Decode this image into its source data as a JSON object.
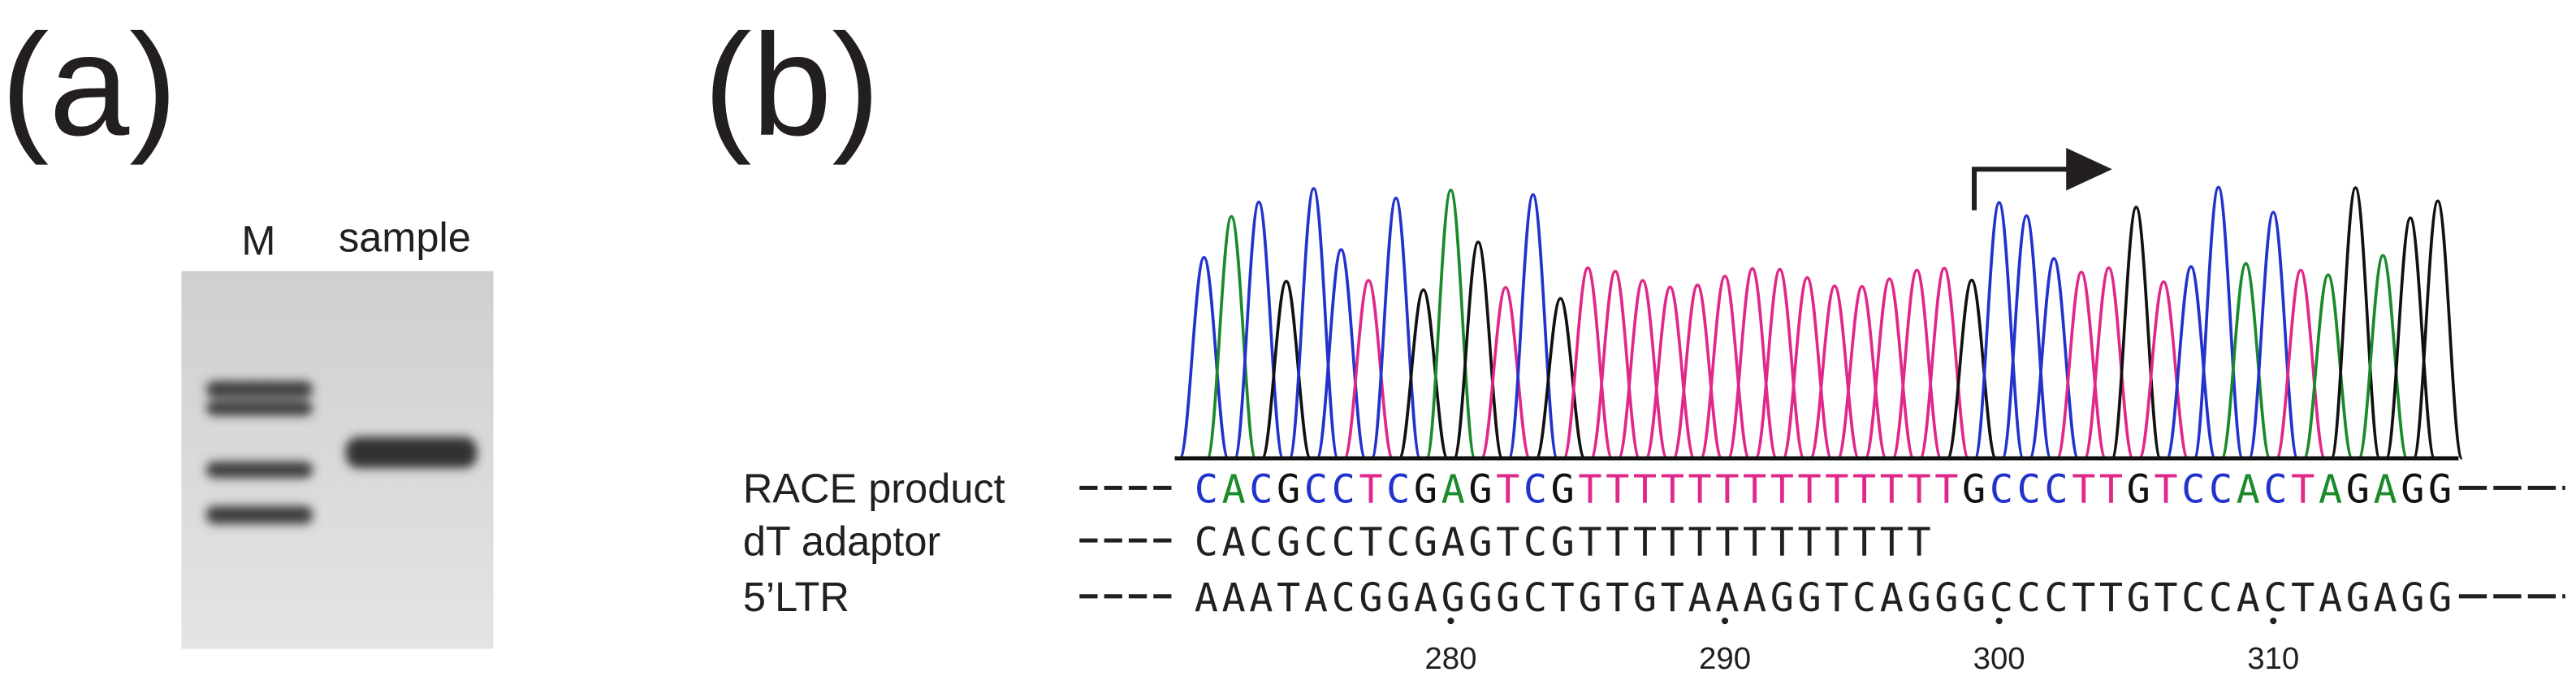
{
  "panel_a": {
    "label": "(a)",
    "lanes": [
      "M",
      "sample"
    ]
  },
  "panel_b": {
    "label": "(b)",
    "rows": [
      {
        "name": "RACE product",
        "sequence": "CACGCCTCGAGTCGTTTTTTTTTTTTTTGCCCTTGTCCACTAGAGG"
      },
      {
        "name": "dT adaptor",
        "sequence": "CACGCCTCGAGTCGTTTTTTTTTTTTT"
      },
      {
        "name": "5’LTR",
        "sequence": "AAATACGGAGGGCTGTGTAAAGGTCAGGGCCCTTGTCCACTAGAGG"
      }
    ],
    "position_ticks": [
      280,
      290,
      300,
      310
    ]
  }
}
